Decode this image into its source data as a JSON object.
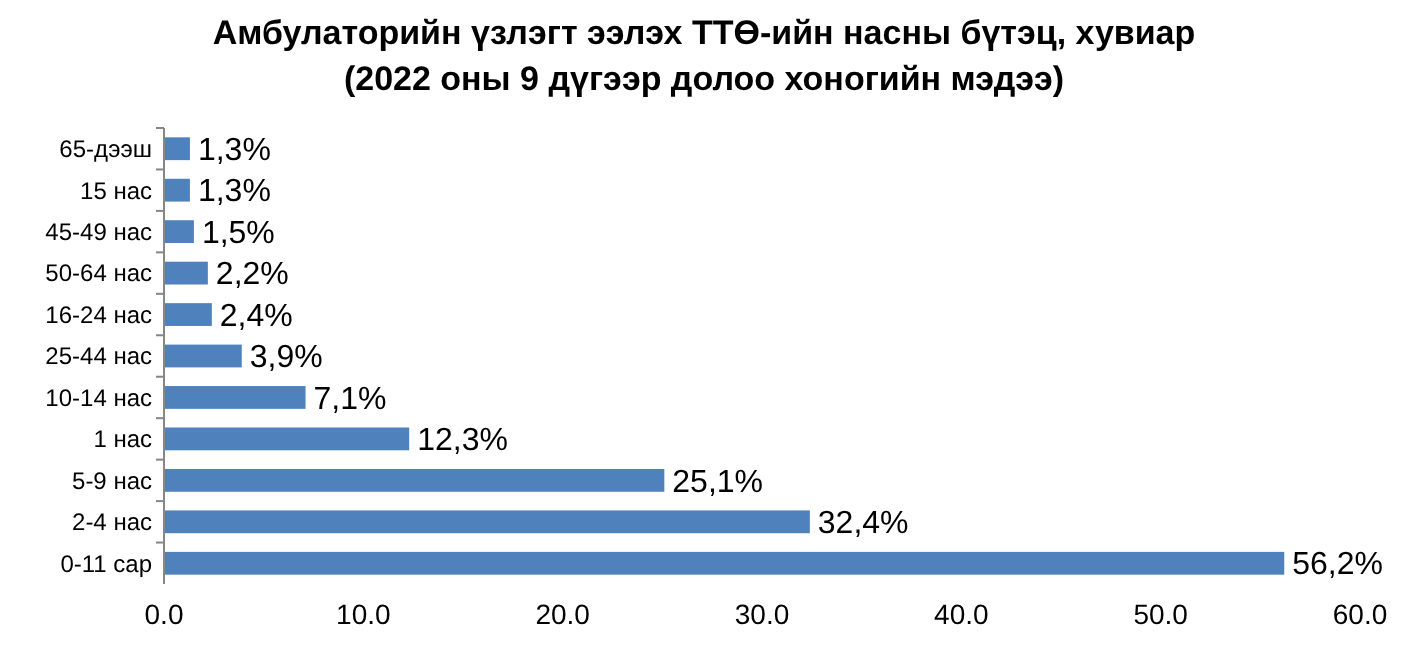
{
  "chart_data": {
    "type": "bar",
    "orientation": "horizontal",
    "title": "Амбулаторийн үзлэгт ээлэх ТТӨ-ийн насны бүтэц, хувиар\n(2022 оны 9 дүгээр долоо хоногийн мэдээ)",
    "categories": [
      "65-дээш",
      "15 нас",
      "45-49 нас",
      "50-64 нас",
      "16-24 нас",
      "25-44 нас",
      "10-14 нас",
      "1 нас",
      "5-9 нас",
      "2-4 нас",
      "0-11 сар"
    ],
    "values": [
      1.3,
      1.3,
      1.5,
      2.2,
      2.4,
      3.9,
      7.1,
      12.3,
      25.1,
      32.4,
      56.2
    ],
    "value_labels": [
      "1,3%",
      "1,3%",
      "1,5%",
      "2,2%",
      "2,4%",
      "3,9%",
      "7,1%",
      "12,3%",
      "25,1%",
      "32,4%",
      "56,2%"
    ],
    "color": "#4f81bd",
    "xlim": [
      0,
      60
    ],
    "xticks": [
      {
        "value": 0,
        "label": "0.0"
      },
      {
        "value": 10,
        "label": "10.0"
      },
      {
        "value": 20,
        "label": "20.0"
      },
      {
        "value": 30,
        "label": "30.0"
      },
      {
        "value": 40,
        "label": "40.0"
      },
      {
        "value": 50,
        "label": "50.0"
      },
      {
        "value": 60,
        "label": "60.0"
      }
    ],
    "grid": false
  }
}
